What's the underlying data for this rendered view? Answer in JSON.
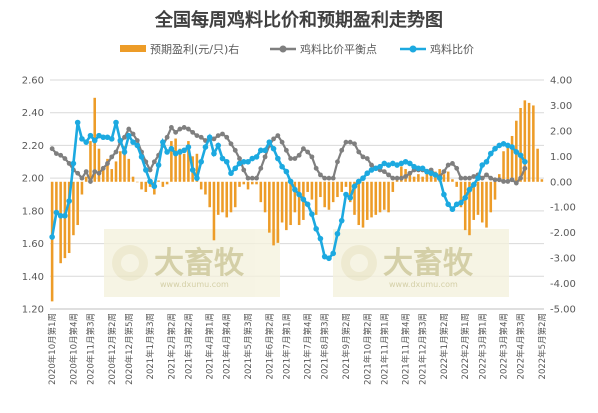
{
  "chart_data": {
    "type": "bar+line",
    "title": "全国每周鸡料比价和预期盈利走势图",
    "y_left": {
      "ylim": [
        1.2,
        2.6
      ],
      "ticks": [
        "1.20",
        "1.40",
        "1.60",
        "1.80",
        "2.00",
        "2.20",
        "2.40",
        "2.60"
      ]
    },
    "y_right": {
      "ylim": [
        -5.0,
        4.0
      ],
      "ticks": [
        "-5.00",
        "-4.00",
        "-3.00",
        "-2.00",
        "-1.00",
        "0.00",
        "1.00",
        "2.00",
        "3.00",
        "4.00"
      ]
    },
    "x_tick_labels": [
      "2020年10月第1周",
      "2020年10月第4周",
      "2020年11月第3周",
      "2020年12月第2周",
      "2020年12月第5周",
      "2021年1月第3周",
      "2021年2月第2周",
      "2021年3月第2周",
      "2021年4月第1周",
      "2021年4月第4周",
      "2021年5月第3周",
      "2021年6月第2周",
      "2021年7月第1周",
      "2021年7月第4周",
      "2021年8月第3周",
      "2021年9月第2周",
      "2021年10月第2周",
      "2021年11月第1周",
      "2021年11月第4周",
      "2021年12月第3周",
      "2022年1月第2周",
      "2022年2月第1周",
      "2022年3月第1周",
      "2022年3月第4周",
      "2022年4月第3周",
      "2022年5月第2周"
    ],
    "legend": [
      "预期盈利(元/只)右",
      "鸡料比价平衡点",
      "鸡料比价"
    ],
    "series": [
      {
        "name": "预期盈利(元/只)右",
        "axis": "right",
        "kind": "bar",
        "color": "#ED9C28",
        "values": [
          -4.7,
          -1.3,
          -3.2,
          -3.0,
          -2.8,
          -2.1,
          -1.7,
          -0.5,
          0.2,
          1.6,
          3.3,
          1.3,
          0.6,
          0.9,
          0.5,
          0.8,
          1.2,
          1.4,
          0.9,
          0.2,
          0.0,
          -0.3,
          -0.4,
          -0.2,
          -0.5,
          0.05,
          -0.2,
          -0.1,
          1.6,
          1.7,
          1.3,
          1.1,
          1.6,
          1.0,
          1.1,
          -0.3,
          -0.5,
          -1.0,
          -2.3,
          -1.3,
          -1.2,
          -1.4,
          -1.2,
          -1.0,
          -0.2,
          -0.1,
          -0.3,
          -0.1,
          -0.1,
          -0.8,
          -1.2,
          -2.0,
          -2.5,
          -2.4,
          -1.6,
          -1.9,
          -1.7,
          -1.2,
          -1.7,
          -1.5,
          -0.4,
          -0.7,
          -1.3,
          -0.6,
          -1.0,
          -1.1,
          -0.8,
          -0.6,
          -0.4,
          -0.2,
          -0.8,
          -1.3,
          -1.7,
          -1.8,
          -1.5,
          -1.4,
          -1.3,
          -1.2,
          -1.1,
          -1.2,
          -0.4,
          0.2,
          0.6,
          0.5,
          0.4,
          0.2,
          0.3,
          0.2,
          0.5,
          0.4,
          0.4,
          0.5,
          0.3,
          0.4,
          0.1,
          -0.2,
          -1.0,
          -1.9,
          -2.1,
          -1.5,
          -1.3,
          -1.6,
          -1.8,
          -1.2,
          -0.7,
          0.3,
          1.2,
          1.5,
          1.8,
          2.4,
          2.9,
          3.2,
          3.1,
          3.0,
          1.3,
          0.1
        ]
      },
      {
        "name": "鸡料比价平衡点",
        "axis": "left",
        "kind": "line",
        "color": "#7F7F7F",
        "values": [
          2.18,
          2.15,
          2.14,
          2.12,
          2.09,
          2.05,
          2.03,
          2.0,
          2.04,
          1.98,
          2.04,
          2.03,
          2.06,
          2.09,
          2.13,
          2.16,
          2.22,
          2.25,
          2.3,
          2.27,
          2.23,
          2.16,
          2.1,
          2.05,
          2.1,
          2.14,
          2.2,
          2.25,
          2.31,
          2.28,
          2.3,
          2.31,
          2.3,
          2.28,
          2.26,
          2.25,
          2.23,
          2.24,
          2.24,
          2.26,
          2.27,
          2.25,
          2.21,
          2.17,
          2.12,
          2.05,
          2.0,
          2.0,
          2.0,
          2.06,
          2.13,
          2.2,
          2.24,
          2.26,
          2.22,
          2.17,
          2.12,
          2.12,
          2.14,
          2.18,
          2.16,
          2.13,
          2.06,
          2.02,
          2.0,
          2.0,
          2.0,
          2.1,
          2.17,
          2.22,
          2.22,
          2.21,
          2.16,
          2.13,
          2.12,
          2.08,
          2.06,
          2.05,
          2.04,
          2.02,
          2.0,
          2.0,
          2.0,
          2.01,
          2.03,
          2.05,
          2.05,
          2.05,
          2.04,
          2.05,
          2.02,
          2.01,
          2.04,
          2.08,
          2.09,
          2.06,
          2.0,
          2.0,
          2.0,
          2.01,
          2.02,
          2.0,
          2.02,
          2.0,
          1.99,
          1.99,
          1.98,
          1.98,
          1.99,
          1.97,
          2.0,
          2.06
        ]
      },
      {
        "name": "鸡料比价",
        "axis": "left",
        "kind": "line",
        "color": "#1CA9E0",
        "values": [
          1.64,
          1.79,
          1.77,
          1.77,
          1.86,
          2.09,
          2.34,
          2.24,
          2.22,
          2.26,
          2.23,
          2.26,
          2.25,
          2.25,
          2.24,
          2.34,
          2.23,
          2.16,
          2.26,
          2.22,
          2.2,
          2.13,
          2.05,
          1.98,
          1.95,
          2.08,
          2.22,
          2.16,
          2.18,
          2.15,
          2.16,
          2.17,
          2.19,
          2.05,
          2.0,
          2.1,
          2.19,
          2.25,
          2.15,
          2.2,
          2.12,
          2.1,
          2.03,
          2.06,
          2.09,
          2.1,
          2.1,
          2.12,
          2.13,
          2.17,
          2.17,
          2.22,
          2.18,
          2.12,
          2.07,
          2.04,
          1.98,
          1.93,
          1.9,
          1.87,
          1.84,
          1.78,
          1.69,
          1.63,
          1.52,
          1.51,
          1.54,
          1.66,
          1.74,
          1.9,
          1.88,
          1.95,
          1.98,
          2.0,
          2.03,
          2.05,
          2.06,
          2.07,
          2.09,
          2.08,
          2.09,
          2.08,
          2.09,
          2.1,
          2.09,
          2.07,
          2.06,
          2.06,
          2.04,
          2.03,
          2.02,
          2.0,
          1.9,
          1.84,
          1.81,
          1.84,
          1.85,
          1.88,
          1.93,
          1.96,
          2.0,
          2.08,
          2.1,
          2.15,
          2.18,
          2.2,
          2.21,
          2.2,
          2.19,
          2.16,
          2.14,
          2.1
        ]
      }
    ],
    "watermark": {
      "brand": "大畜牧",
      "url": "www.dxumu.com"
    }
  }
}
